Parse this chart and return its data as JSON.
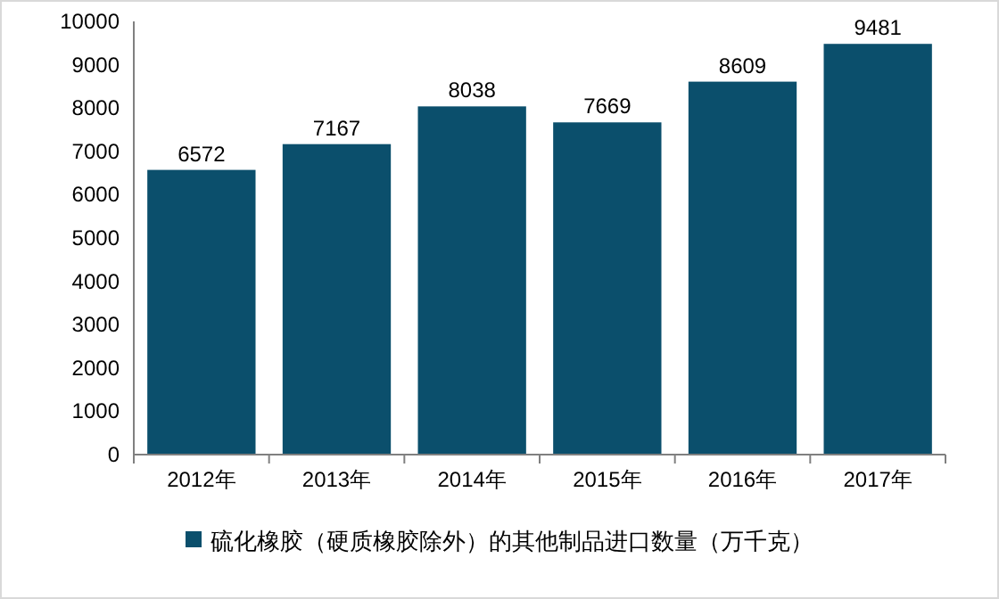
{
  "chart_data": {
    "type": "bar",
    "categories": [
      "2012年",
      "2013年",
      "2014年",
      "2015年",
      "2016年",
      "2017年"
    ],
    "series": [
      {
        "name": "硫化橡胶（硬质橡胶除外）的其他制品进口数量（万千克）",
        "color": "#0b4f6c",
        "values": [
          6572,
          7167,
          8038,
          7669,
          8609,
          9481
        ]
      }
    ],
    "ylim": [
      0,
      10000
    ],
    "yticks": [
      0,
      1000,
      2000,
      3000,
      4000,
      5000,
      6000,
      7000,
      8000,
      9000,
      10000
    ],
    "data_labels": true,
    "legend": "bottom",
    "grid": false
  }
}
